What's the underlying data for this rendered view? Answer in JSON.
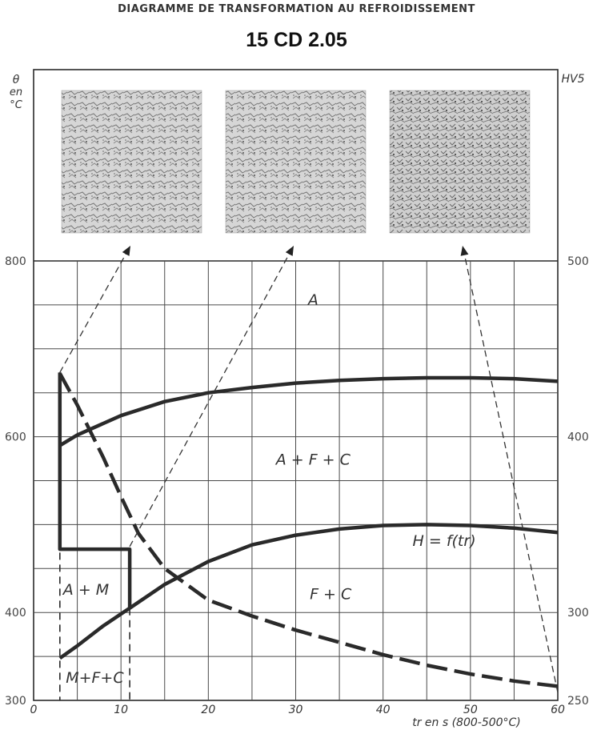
{
  "header": {
    "suptitle": "DIAGRAMME DE TRANSFORMATION AU REFROIDISSEMENT",
    "title": "15 CD 2.05"
  },
  "chart_data": {
    "type": "line",
    "xlabel": "tr en s (800-500°C)",
    "y_left_unit": [
      "θ",
      "en",
      "°C"
    ],
    "y_right_unit": "HV5",
    "xlim": [
      0,
      60
    ],
    "ylim_left": [
      300,
      800
    ],
    "ylim_right": [
      250,
      500
    ],
    "x_ticks": [
      0,
      10,
      20,
      30,
      40,
      50,
      60
    ],
    "y_left_ticks": [
      300,
      400,
      600,
      800
    ],
    "y_right_ticks": [
      250,
      300,
      400,
      500
    ],
    "grid": true,
    "series": [
      {
        "key": "upper",
        "style": "solid",
        "axis": "left",
        "points": [
          [
            3,
            590
          ],
          [
            5,
            602
          ],
          [
            10,
            624
          ],
          [
            15,
            640
          ],
          [
            20,
            650
          ],
          [
            25,
            656
          ],
          [
            30,
            661
          ],
          [
            35,
            664
          ],
          [
            40,
            666
          ],
          [
            45,
            667
          ],
          [
            50,
            667
          ],
          [
            55,
            666
          ],
          [
            60,
            663
          ]
        ]
      },
      {
        "key": "lower",
        "style": "solid",
        "axis": "left",
        "points": [
          [
            3,
            348
          ],
          [
            5,
            362
          ],
          [
            8,
            385
          ],
          [
            11,
            405
          ],
          [
            15,
            432
          ],
          [
            20,
            458
          ],
          [
            25,
            477
          ],
          [
            30,
            488
          ],
          [
            35,
            495
          ],
          [
            40,
            499
          ],
          [
            45,
            500
          ],
          [
            50,
            499
          ],
          [
            55,
            496
          ],
          [
            60,
            491
          ]
        ]
      },
      {
        "key": "martensite_start",
        "style": "solid",
        "axis": "left",
        "points": [
          [
            3,
            673
          ],
          [
            3,
            472
          ],
          [
            11,
            472
          ],
          [
            11,
            405
          ]
        ]
      },
      {
        "key": "hardness",
        "label": "H = f(tr)",
        "style": "dash",
        "axis": "right",
        "points": [
          [
            3,
            436
          ],
          [
            5,
            418
          ],
          [
            8,
            388
          ],
          [
            10,
            366
          ],
          [
            12,
            345
          ],
          [
            15,
            325
          ],
          [
            20,
            307
          ],
          [
            25,
            298
          ],
          [
            30,
            290
          ],
          [
            35,
            283
          ],
          [
            40,
            276
          ],
          [
            45,
            270
          ],
          [
            50,
            265
          ],
          [
            55,
            261
          ],
          [
            60,
            258
          ]
        ]
      },
      {
        "key": "t_start",
        "style": "dash",
        "axis": "left",
        "points": [
          [
            3,
            673
          ],
          [
            3,
            300
          ]
        ]
      },
      {
        "key": "t_mid",
        "style": "dash",
        "axis": "left",
        "points": [
          [
            11,
            405
          ],
          [
            11,
            300
          ]
        ]
      }
    ],
    "annotations": [
      {
        "text": "A",
        "x": 32,
        "y": 750
      },
      {
        "text": "A + F + C",
        "x": 32,
        "y": 568
      },
      {
        "text": "A + M",
        "x": 6,
        "y": 420
      },
      {
        "text": "F + C",
        "x": 34,
        "y": 415
      },
      {
        "text": "M+F+C",
        "x": 7,
        "y": 320
      },
      {
        "text": "H = f(tr)",
        "x": 47,
        "y": 338
      }
    ],
    "micrographs": [
      {
        "label": "micrograph-1",
        "arrow_from": [
          3,
          673
        ]
      },
      {
        "label": "micrograph-2",
        "arrow_from": [
          11,
          475
        ]
      },
      {
        "label": "micrograph-3",
        "arrow_from": [
          60,
          309
        ]
      }
    ]
  },
  "colors": {
    "line": "#2a2a2a",
    "grid": "#4a4a4a",
    "micrograph_bg": "#d8d8d8",
    "micrograph_dark": "#6a6a6a"
  }
}
